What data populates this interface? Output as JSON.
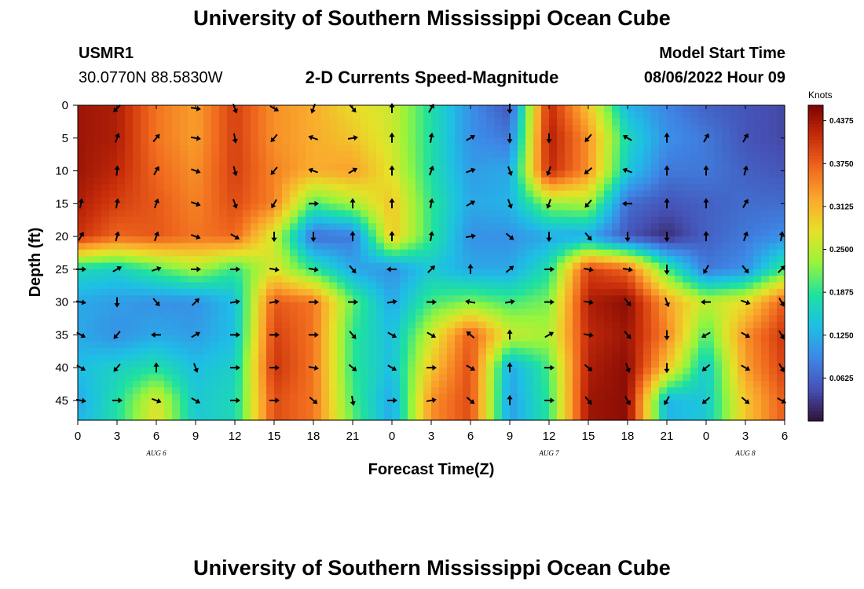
{
  "header": {
    "title": "University of Southern Mississippi Ocean Cube",
    "station_id": "USMR1",
    "coordinates": "30.0770N  88.5830W",
    "chart_title": "2-D Currents Speed-Magnitude",
    "model_start_label": "Model Start Time",
    "model_start_value": "08/06/2022 Hour 09"
  },
  "footer": {
    "title": "University of Southern Mississippi Ocean Cube"
  },
  "chart_data": {
    "type": "heatmap",
    "title": "2-D Currents Speed-Magnitude",
    "xlabel": "Forecast Time(Z)",
    "ylabel": "Depth (ft)",
    "x_tick_labels": [
      "0",
      "3",
      "6",
      "9",
      "12",
      "15",
      "18",
      "21",
      "0",
      "3",
      "6",
      "9",
      "12",
      "15",
      "18",
      "21",
      "0",
      "3",
      "6"
    ],
    "x_hours": [
      0,
      3,
      6,
      9,
      12,
      15,
      18,
      21,
      24,
      27,
      30,
      33,
      36,
      39,
      42,
      45,
      48,
      51,
      54
    ],
    "date_labels": [
      {
        "text": "AUG 6",
        "hour": 6
      },
      {
        "text": "AUG 7",
        "hour": 36
      },
      {
        "text": "AUG 8",
        "hour": 51
      }
    ],
    "xlim": [
      0,
      54
    ],
    "ylim": [
      0,
      48
    ],
    "y_ticks": [
      0,
      5,
      10,
      15,
      20,
      25,
      30,
      35,
      40,
      45
    ],
    "colorbar": {
      "unit": "Knots",
      "range": [
        0,
        0.46
      ],
      "tick_labels": [
        "0.4375",
        "0.3750",
        "0.3125",
        "0.2500",
        "0.1875",
        "0.1250",
        "0.0625"
      ],
      "tick_values": [
        0.4375,
        0.375,
        0.3125,
        0.25,
        0.1875,
        0.125,
        0.0625
      ]
    },
    "grid_hours": [
      0,
      3,
      6,
      9,
      12,
      15,
      18,
      21,
      24,
      27,
      30,
      33,
      36,
      39,
      42,
      45,
      48,
      51,
      54
    ],
    "grid_depths": [
      0,
      5,
      10,
      15,
      20,
      25,
      30,
      35,
      40,
      45,
      48
    ],
    "speed": [
      [
        0.44,
        0.43,
        0.36,
        0.33,
        0.4,
        0.34,
        0.32,
        0.28,
        0.26,
        0.18,
        0.1,
        0.05,
        0.42,
        0.3,
        0.13,
        0.09,
        0.06,
        0.05,
        0.04
      ],
      [
        0.44,
        0.43,
        0.36,
        0.33,
        0.4,
        0.34,
        0.32,
        0.3,
        0.26,
        0.18,
        0.1,
        0.08,
        0.43,
        0.34,
        0.17,
        0.1,
        0.08,
        0.05,
        0.04
      ],
      [
        0.44,
        0.42,
        0.37,
        0.34,
        0.4,
        0.35,
        0.32,
        0.33,
        0.27,
        0.18,
        0.11,
        0.12,
        0.42,
        0.34,
        0.15,
        0.08,
        0.08,
        0.06,
        0.05
      ],
      [
        0.43,
        0.4,
        0.38,
        0.35,
        0.39,
        0.35,
        0.2,
        0.24,
        0.3,
        0.19,
        0.12,
        0.13,
        0.23,
        0.24,
        0.07,
        0.05,
        0.06,
        0.07,
        0.07
      ],
      [
        0.41,
        0.37,
        0.38,
        0.36,
        0.37,
        0.26,
        0.07,
        0.08,
        0.3,
        0.19,
        0.1,
        0.1,
        0.12,
        0.12,
        0.05,
        0.02,
        0.06,
        0.08,
        0.1
      ],
      [
        0.17,
        0.16,
        0.2,
        0.24,
        0.19,
        0.27,
        0.19,
        0.12,
        0.1,
        0.15,
        0.12,
        0.12,
        0.18,
        0.4,
        0.37,
        0.2,
        0.08,
        0.1,
        0.2
      ],
      [
        0.12,
        0.11,
        0.1,
        0.1,
        0.14,
        0.38,
        0.36,
        0.21,
        0.12,
        0.2,
        0.22,
        0.2,
        0.22,
        0.43,
        0.45,
        0.33,
        0.25,
        0.28,
        0.38
      ],
      [
        0.12,
        0.1,
        0.12,
        0.11,
        0.14,
        0.4,
        0.36,
        0.19,
        0.14,
        0.26,
        0.38,
        0.26,
        0.24,
        0.42,
        0.44,
        0.35,
        0.2,
        0.34,
        0.41
      ],
      [
        0.14,
        0.16,
        0.18,
        0.14,
        0.16,
        0.41,
        0.36,
        0.19,
        0.14,
        0.3,
        0.39,
        0.12,
        0.2,
        0.43,
        0.45,
        0.3,
        0.15,
        0.33,
        0.4
      ],
      [
        0.12,
        0.18,
        0.27,
        0.15,
        0.17,
        0.39,
        0.36,
        0.2,
        0.12,
        0.34,
        0.39,
        0.11,
        0.19,
        0.44,
        0.45,
        0.13,
        0.15,
        0.3,
        0.38
      ],
      [
        0.13,
        0.18,
        0.28,
        0.15,
        0.17,
        0.39,
        0.36,
        0.21,
        0.12,
        0.34,
        0.39,
        0.11,
        0.19,
        0.44,
        0.45,
        0.13,
        0.15,
        0.3,
        0.38
      ]
    ],
    "arrow_hours": [
      0,
      3,
      6,
      9,
      12,
      15,
      18,
      21,
      24,
      27,
      30,
      33,
      36,
      39,
      42,
      45,
      48,
      51,
      54
    ],
    "arrow_depths": [
      0,
      5,
      10,
      15,
      20,
      25,
      30,
      35,
      40,
      45
    ],
    "arrow_directions_deg": [
      [
        null,
        225,
        null,
        100,
        160,
        120,
        200,
        140,
        0,
        30,
        null,
        180,
        null,
        null,
        null,
        null,
        null,
        null,
        null
      ],
      [
        null,
        20,
        40,
        100,
        170,
        220,
        290,
        80,
        0,
        10,
        60,
        180,
        180,
        220,
        300,
        0,
        30,
        30,
        null
      ],
      [
        null,
        5,
        30,
        110,
        165,
        220,
        290,
        60,
        0,
        20,
        70,
        160,
        200,
        230,
        290,
        0,
        0,
        15,
        null
      ],
      [
        10,
        10,
        20,
        110,
        160,
        210,
        90,
        0,
        0,
        10,
        60,
        160,
        200,
        220,
        270,
        0,
        0,
        30,
        null
      ],
      [
        30,
        15,
        20,
        110,
        120,
        180,
        180,
        0,
        0,
        10,
        80,
        130,
        180,
        140,
        180,
        180,
        0,
        20,
        10
      ],
      [
        90,
        60,
        70,
        90,
        90,
        100,
        100,
        140,
        270,
        45,
        0,
        50,
        90,
        100,
        100,
        180,
        210,
        140,
        45
      ],
      [
        100,
        180,
        140,
        45,
        80,
        80,
        90,
        90,
        80,
        90,
        280,
        80,
        90,
        100,
        140,
        160,
        270,
        110,
        150
      ],
      [
        120,
        220,
        270,
        60,
        90,
        90,
        90,
        140,
        120,
        120,
        310,
        0,
        60,
        100,
        140,
        180,
        240,
        120,
        150
      ],
      [
        120,
        220,
        0,
        160,
        90,
        90,
        100,
        130,
        120,
        90,
        120,
        0,
        90,
        130,
        160,
        180,
        230,
        120,
        150
      ],
      [
        100,
        90,
        110,
        120,
        90,
        90,
        130,
        170,
        90,
        80,
        130,
        0,
        90,
        140,
        150,
        210,
        230,
        130,
        120
      ]
    ]
  }
}
